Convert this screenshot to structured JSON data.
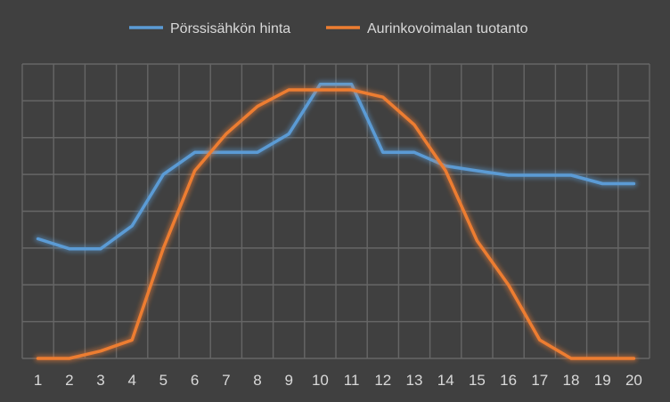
{
  "chart_data": {
    "type": "line",
    "title": "",
    "xlabel": "",
    "ylabel": "",
    "categories": [
      "1",
      "2",
      "3",
      "4",
      "5",
      "6",
      "7",
      "8",
      "9",
      "10",
      "11",
      "12",
      "13",
      "14",
      "15",
      "16",
      "17",
      "18",
      "19",
      "20"
    ],
    "ylim": [
      0,
      8
    ],
    "grid": true,
    "legend": "top",
    "series": [
      {
        "name": "Pörssisähkön hinta",
        "color": "#5B9BD5",
        "values": [
          3.25,
          2.98,
          2.98,
          3.6,
          5.0,
          5.6,
          5.6,
          5.6,
          6.1,
          7.45,
          7.45,
          5.6,
          5.6,
          5.23,
          5.1,
          4.98,
          4.98,
          4.98,
          4.75,
          4.75
        ]
      },
      {
        "name": "Aurinkovoimalan tuotanto",
        "color": "#ED7D31",
        "values": [
          0,
          0,
          0.2,
          0.5,
          3.0,
          5.1,
          6.1,
          6.85,
          7.3,
          7.3,
          7.3,
          7.1,
          6.35,
          5.1,
          3.2,
          2.0,
          0.5,
          0,
          0,
          0
        ]
      }
    ]
  }
}
